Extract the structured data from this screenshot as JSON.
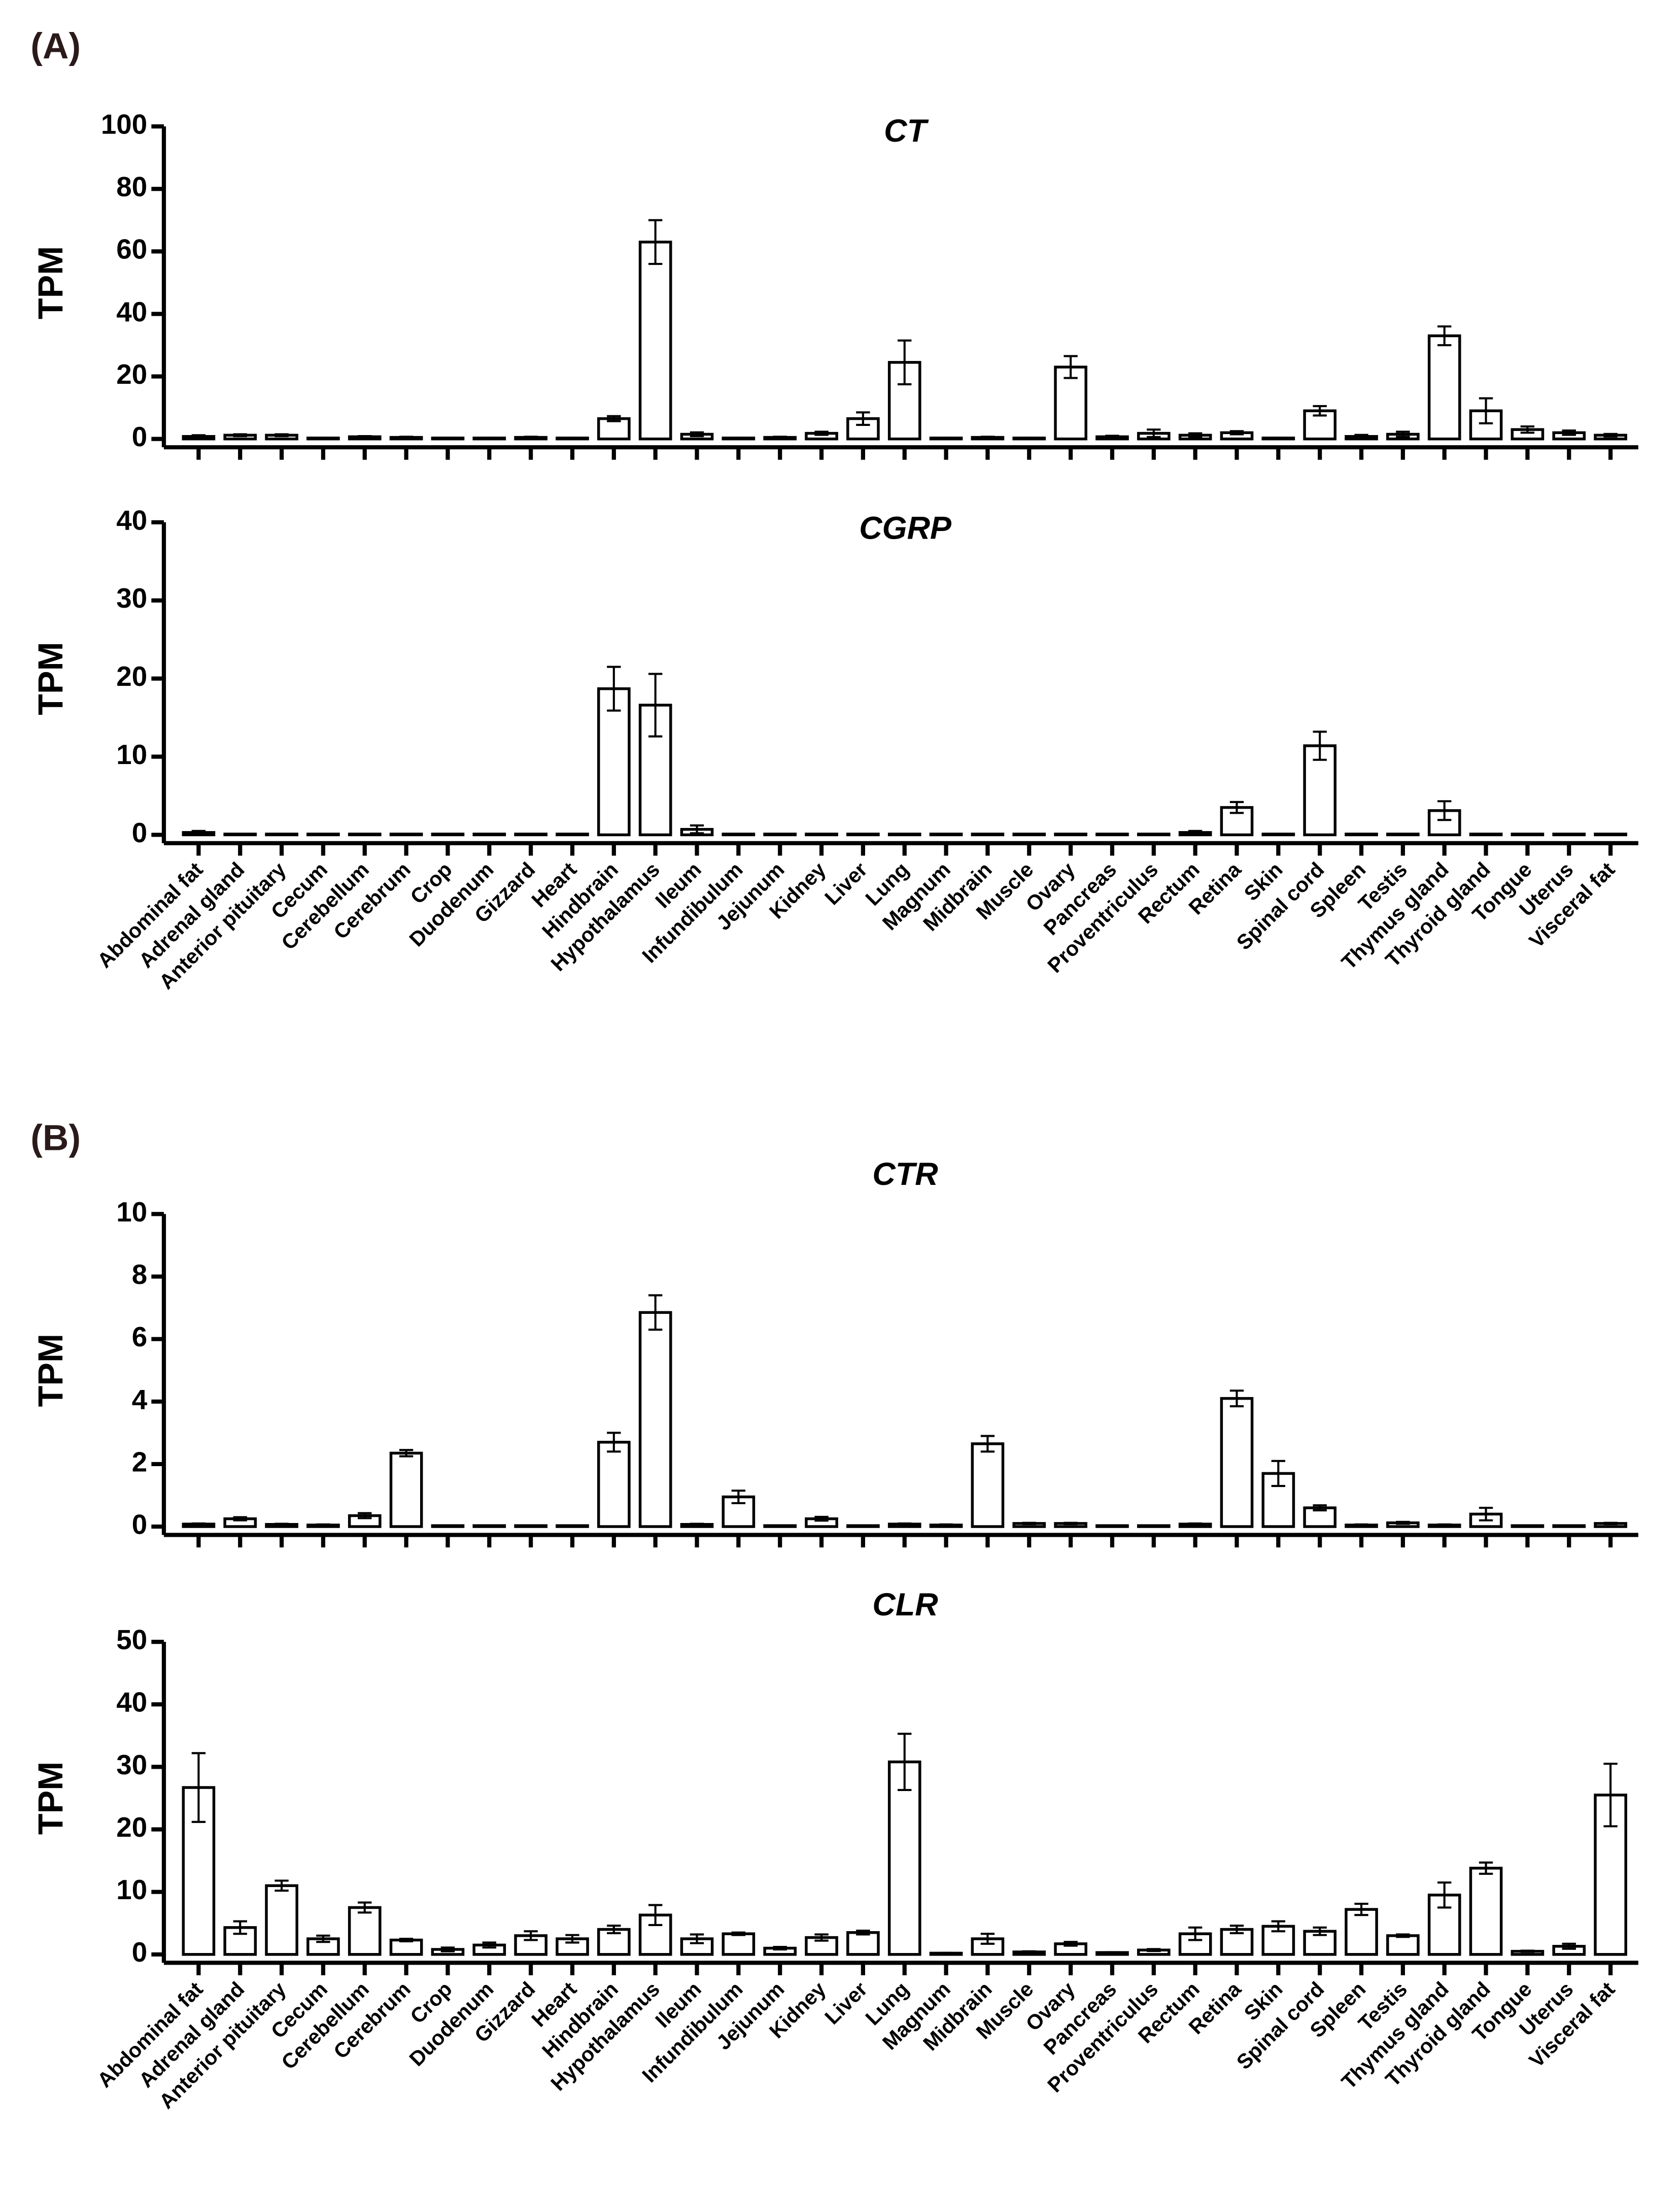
{
  "panel_labels": [
    "(A)",
    "(B)"
  ],
  "chart_data": [
    {
      "type": "bar",
      "title": "CT",
      "ylabel": "TPM",
      "color": "#ffffff",
      "edgecolor": "#000000",
      "ylim": [
        0,
        100
      ],
      "yticks": [
        0,
        20,
        40,
        60,
        80,
        100
      ],
      "values": [
        0.8,
        1.2,
        1.2,
        0.3,
        0.7,
        0.5,
        0.3,
        0.3,
        0.5,
        0.3,
        6.5,
        63,
        1.5,
        0.3,
        0.5,
        1.8,
        6.5,
        24.5,
        0.3,
        0.5,
        0.3,
        23,
        0.7,
        1.8,
        1.2,
        2,
        0.3,
        9,
        0.8,
        1.5,
        33,
        9,
        3,
        2,
        1.2
      ],
      "errors": [
        0.4,
        0.3,
        0.3,
        0.1,
        0.2,
        0.2,
        0.1,
        0.1,
        0.2,
        0.1,
        0.8,
        7,
        0.6,
        0.1,
        0.2,
        0.5,
        2,
        7,
        0.1,
        0.2,
        0.1,
        3.5,
        0.3,
        1.2,
        0.6,
        0.5,
        0.1,
        1.5,
        0.5,
        0.8,
        3,
        4,
        1,
        0.7,
        0.4
      ]
    },
    {
      "type": "bar",
      "title": "CGRP",
      "ylabel": "TPM",
      "color": "#ffffff",
      "edgecolor": "#000000",
      "ylim": [
        0,
        40
      ],
      "yticks": [
        0,
        10,
        20,
        30,
        40
      ],
      "categories": [
        "Abdominal fat",
        "Adrenal gland",
        "Anterior pituitary",
        "Cecum",
        "Cerebellum",
        "Cerebrum",
        "Crop",
        "Duodenum",
        "Gizzard",
        "Heart",
        "Hindbrain",
        "Hypothalamus",
        "Ileum",
        "Infundibulum",
        "Jejunum",
        "Kidney",
        "Liver",
        "Lung",
        "Magnum",
        "Midbrain",
        "Muscle",
        "Ovary",
        "Pancreas",
        "Proventriculus",
        "Rectum",
        "Retina",
        "Skin",
        "Spinal cord",
        "Spleen",
        "Testis",
        "Thymus gland",
        "Thyroid gland",
        "Tongue",
        "Uterus",
        "Visceral fat"
      ],
      "values": [
        0.3,
        0.1,
        0.1,
        0.1,
        0.1,
        0.1,
        0.1,
        0.1,
        0.1,
        0.1,
        18.7,
        16.6,
        0.7,
        0.1,
        0.1,
        0.1,
        0.1,
        0.1,
        0.1,
        0.1,
        0.1,
        0.1,
        0.1,
        0.1,
        0.3,
        3.5,
        0.1,
        11.4,
        0.1,
        0.1,
        3.1,
        0.1,
        0.1,
        0.1,
        0.1
      ],
      "errors": [
        0.2,
        0,
        0,
        0,
        0,
        0,
        0,
        0,
        0,
        0,
        2.8,
        4,
        0.5,
        0,
        0,
        0,
        0,
        0,
        0,
        0,
        0,
        0,
        0,
        0,
        0.2,
        0.7,
        0,
        1.8,
        0,
        0,
        1.2,
        0,
        0,
        0,
        0
      ]
    },
    {
      "type": "bar",
      "title": "CTR",
      "ylabel": "TPM",
      "color": "#ffffff",
      "edgecolor": "#000000",
      "ylim": [
        0,
        10
      ],
      "yticks": [
        0,
        2,
        4,
        6,
        8,
        10
      ],
      "values": [
        0.08,
        0.25,
        0.07,
        0.05,
        0.35,
        2.35,
        0.03,
        0.03,
        0.03,
        0.03,
        2.7,
        6.85,
        0.07,
        0.95,
        0.03,
        0.25,
        0.03,
        0.08,
        0.05,
        2.65,
        0.1,
        0.1,
        0.03,
        0.03,
        0.08,
        4.1,
        1.7,
        0.6,
        0.05,
        0.12,
        0.05,
        0.4,
        0.03,
        0.03,
        0.1
      ],
      "errors": [
        0.02,
        0.05,
        0.02,
        0.02,
        0.08,
        0.1,
        0.01,
        0.01,
        0.01,
        0.01,
        0.3,
        0.55,
        0.02,
        0.2,
        0.01,
        0.06,
        0.01,
        0.02,
        0.02,
        0.25,
        0.02,
        0.02,
        0.01,
        0.01,
        0.02,
        0.25,
        0.4,
        0.08,
        0.02,
        0.03,
        0.02,
        0.2,
        0.01,
        0.01,
        0.02
      ]
    },
    {
      "type": "bar",
      "title": "CLR",
      "ylabel": "TPM",
      "color": "#ffffff",
      "edgecolor": "#000000",
      "ylim": [
        0,
        50
      ],
      "yticks": [
        0,
        10,
        20,
        30,
        40,
        50
      ],
      "categories": [
        "Abdominal fat",
        "Adrenal gland",
        "Anterior pituitary",
        "Cecum",
        "Cerebellum",
        "Cerebrum",
        "Crop",
        "Duodenum",
        "Gizzard",
        "Heart",
        "Hindbrain",
        "Hypothalamus",
        "Ileum",
        "Infundibulum",
        "Jejunum",
        "Kidney",
        "Liver",
        "Lung",
        "Magnum",
        "Midbrain",
        "Muscle",
        "Ovary",
        "Pancreas",
        "Proventriculus",
        "Rectum",
        "Retina",
        "Skin",
        "Spinal cord",
        "Spleen",
        "Testis",
        "Thymus gland",
        "Thyroid gland",
        "Tongue",
        "Uterus",
        "Visceral fat"
      ],
      "values": [
        26.7,
        4.3,
        11,
        2.5,
        7.5,
        2.3,
        0.8,
        1.5,
        3,
        2.5,
        4,
        6.3,
        2.5,
        3.3,
        1,
        2.7,
        3.5,
        30.8,
        0.2,
        2.5,
        0.4,
        1.7,
        0.3,
        0.7,
        3.3,
        4,
        4.5,
        3.7,
        7.2,
        3,
        9.5,
        13.8,
        0.5,
        1.3,
        25.5
      ],
      "errors": [
        5.5,
        1,
        0.8,
        0.5,
        0.8,
        0.2,
        0.3,
        0.4,
        0.7,
        0.6,
        0.6,
        1.6,
        0.7,
        0.2,
        0.2,
        0.5,
        0.3,
        4.5,
        0.05,
        0.8,
        0.1,
        0.3,
        0.05,
        0.15,
        1,
        0.6,
        0.8,
        0.6,
        0.9,
        0.2,
        2,
        0.9,
        0.1,
        0.4,
        5
      ]
    }
  ]
}
